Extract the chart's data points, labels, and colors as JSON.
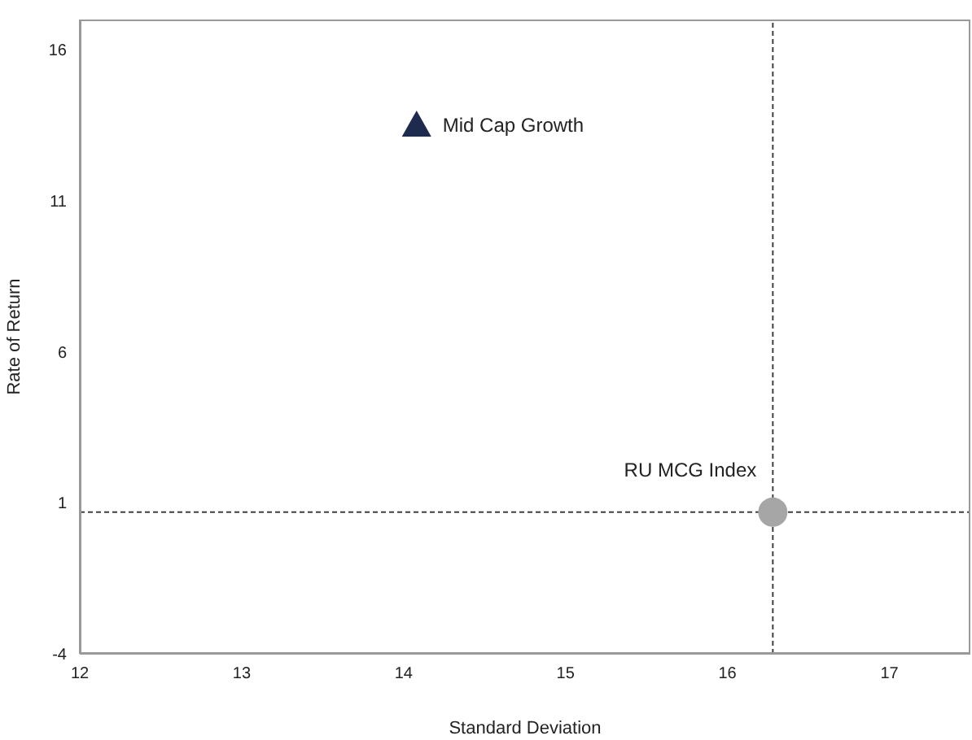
{
  "chart_data": {
    "type": "scatter",
    "xlabel": "Standard Deviation",
    "ylabel": "Rate of Return",
    "xlim": [
      12,
      17.5
    ],
    "xticks": [
      12,
      13,
      14,
      15,
      16,
      17
    ],
    "ylim": [
      -4,
      17
    ],
    "yticks": [
      -4,
      1,
      6,
      11,
      16
    ],
    "grid": false,
    "legend": false,
    "series": [
      {
        "name": "Mid Cap Growth",
        "color": "#1f2a4f",
        "marker": "triangle",
        "x": [
          14.08
        ],
        "values": [
          13.5
        ]
      },
      {
        "name": "RU MCG Index",
        "color": "#a6a6a6",
        "marker": "circle",
        "x": [
          16.28
        ],
        "values": [
          0.69
        ]
      }
    ],
    "ref_lines": [
      {
        "axis": "x",
        "value": 16.28,
        "color": "#404040",
        "line_style": "dashed"
      },
      {
        "axis": "y",
        "value": 0.69,
        "color": "#404040",
        "line_style": "dashed"
      }
    ]
  }
}
